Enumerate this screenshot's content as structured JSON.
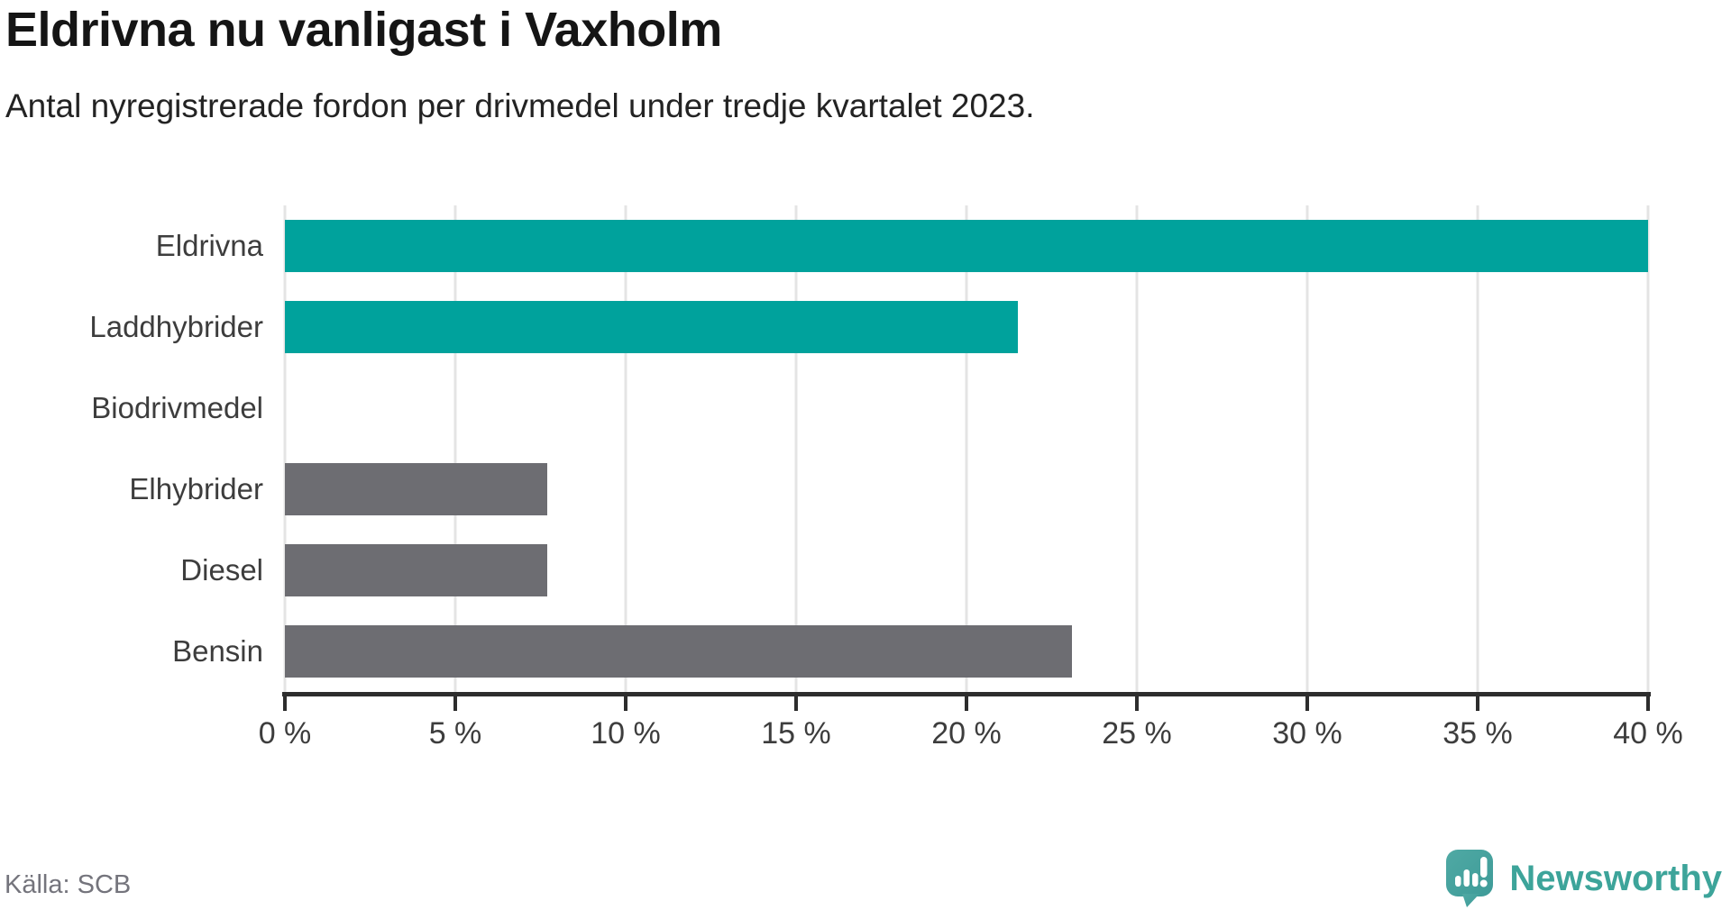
{
  "header": {
    "title": "Eldrivna nu vanligast i Vaxholm",
    "subtitle": "Antal nyregistrerade fordon per drivmedel under tredje kvartalet 2023."
  },
  "chart_data": {
    "type": "bar",
    "orientation": "horizontal",
    "title": "Eldrivna nu vanligast i Vaxholm",
    "subtitle": "Antal nyregistrerade fordon per drivmedel under tredje kvartalet 2023.",
    "categories": [
      "Eldrivna",
      "Laddhybrider",
      "Biodrivmedel",
      "Elhybrider",
      "Diesel",
      "Bensin"
    ],
    "values": [
      40,
      21.5,
      0,
      7.7,
      7.7,
      23.1
    ],
    "unit": "%",
    "bar_colors": [
      "#00a29c",
      "#00a29c",
      "#00a29c",
      "#6d6d72",
      "#6d6d72",
      "#6d6d72"
    ],
    "xlim": [
      0,
      40
    ],
    "x_ticks": [
      0,
      5,
      10,
      15,
      20,
      25,
      30,
      35,
      40
    ],
    "x_tick_labels": [
      "0 %",
      "5 %",
      "10 %",
      "15 %",
      "20 %",
      "25 %",
      "30 %",
      "35 %",
      "40 %"
    ],
    "grid": true,
    "legend": "none",
    "xlabel": "",
    "ylabel": ""
  },
  "footer": {
    "source": "Källa: SCB",
    "brand": "Newsworthy"
  },
  "colors": {
    "accent_teal": "#00a29c",
    "neutral_gray": "#6d6d72",
    "gridline": "#e4e4e4",
    "axis": "#2d2d2d",
    "logo_teal": "#3da49a",
    "logo_mark": "#48a5a1"
  }
}
